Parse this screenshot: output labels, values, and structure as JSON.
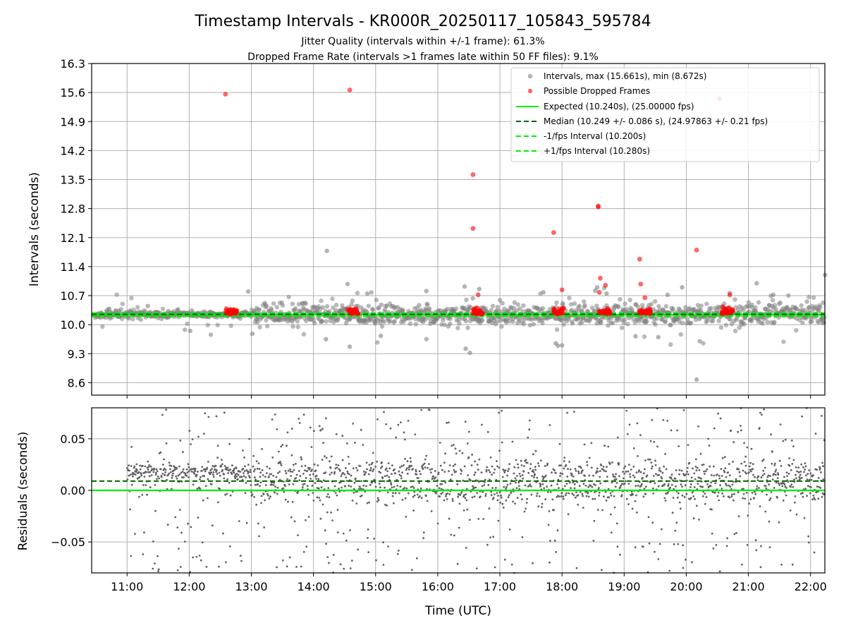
{
  "title": "Timestamp Intervals - KR000R_20250117_105843_595784",
  "subtitle_1": "Jitter Quality (intervals within +/-1 frame): 61.3%",
  "subtitle_2": "Dropped Frame Rate (intervals >1 frames late within 50 FF files): 9.1%",
  "colors": {
    "intervals": "#808080",
    "dropped": "#ff0000",
    "expected": "#00ee00",
    "median": "#006400",
    "bounds": "#00ee00",
    "residual_points": "#606060",
    "grid": "#b0b0b0"
  },
  "chart_data": [
    {
      "type": "scatter",
      "name": "top",
      "ylabel": "Intervals (seconds)",
      "yticks": [
        "8.6",
        "9.3",
        "10.0",
        "10.7",
        "11.4",
        "12.1",
        "12.8",
        "13.5",
        "14.2",
        "14.9",
        "15.6",
        "16.3"
      ],
      "ylim": [
        8.3,
        16.3
      ],
      "xlim_hours": [
        10.43,
        22.23
      ],
      "grid": true,
      "legend_position": "top-right",
      "legend": [
        "Intervals, max (15.661s), min (8.672s)",
        "Possible Dropped Frames",
        "Expected (10.240s), (25.00000 fps)",
        "Median (10.249 +/- 0.086 s), (24.97863 +/- 0.21 fps)",
        "-1/fps Interval (10.200s)",
        "+1/fps Interval (10.280s)"
      ],
      "expected": 10.24,
      "median": 10.249,
      "lower_bound": 10.2,
      "upper_bound": 10.28,
      "interval_outliers": [
        {
          "x": "14:13",
          "y": 11.78
        },
        {
          "x": "20:10",
          "y": 8.672
        },
        {
          "x": "22:14",
          "y": 11.2
        },
        {
          "x": "16:31",
          "y": 9.32
        },
        {
          "x": "16:27",
          "y": 9.42
        },
        {
          "x": "14:35",
          "y": 9.47
        },
        {
          "x": "14:33",
          "y": 10.98
        },
        {
          "x": "21:08",
          "y": 11.0
        },
        {
          "x": "15:49",
          "y": 10.81
        },
        {
          "x": "18:34",
          "y": 10.9
        },
        {
          "x": "19:56",
          "y": 10.9
        },
        {
          "x": "16:26",
          "y": 10.92
        },
        {
          "x": "16:40",
          "y": 10.86
        },
        {
          "x": "12:57",
          "y": 10.8
        },
        {
          "x": "17:42",
          "y": 10.78
        },
        {
          "x": "18:32",
          "y": 10.82
        },
        {
          "x": "20:13",
          "y": 9.6
        },
        {
          "x": "14:52",
          "y": 10.75
        },
        {
          "x": "14:12",
          "y": 9.65
        },
        {
          "x": "15:49",
          "y": 9.65
        },
        {
          "x": "19:33",
          "y": 9.7
        },
        {
          "x": "17:56",
          "y": 9.49
        },
        {
          "x": "18:00",
          "y": 9.5
        },
        {
          "x": "17:54",
          "y": 9.55
        },
        {
          "x": "12:01",
          "y": 9.85
        },
        {
          "x": "13:01",
          "y": 9.78
        },
        {
          "x": "15:05",
          "y": 9.73
        },
        {
          "x": "20:42",
          "y": 10.76
        },
        {
          "x": "21:24",
          "y": 10.72
        },
        {
          "x": "11:20",
          "y": 10.45
        },
        {
          "x": "19:11",
          "y": 9.72
        },
        {
          "x": "18:43",
          "y": 10.75
        },
        {
          "x": "19:42",
          "y": 10.72
        }
      ],
      "dropped_frames": [
        {
          "x": "12:35",
          "y": 15.56
        },
        {
          "x": "14:35",
          "y": 15.661
        },
        {
          "x": "16:34",
          "y": 13.62
        },
        {
          "x": "16:34",
          "y": 12.32
        },
        {
          "x": "17:52",
          "y": 12.22
        },
        {
          "x": "18:35",
          "y": 12.86
        },
        {
          "x": "18:35",
          "y": 12.84
        },
        {
          "x": "20:10",
          "y": 11.8
        },
        {
          "x": "19:15",
          "y": 11.58
        },
        {
          "x": "20:32",
          "y": 15.45
        },
        {
          "x": "18:37",
          "y": 11.12
        },
        {
          "x": "19:16",
          "y": 10.98
        },
        {
          "x": "18:42",
          "y": 10.95
        },
        {
          "x": "18:00",
          "y": 10.84
        },
        {
          "x": "20:42",
          "y": 10.72
        },
        {
          "x": "18:36",
          "y": 10.78
        },
        {
          "x": "16:39",
          "y": 10.72
        },
        {
          "x": "19:20",
          "y": 10.65
        }
      ],
      "dropped_clusters": [
        "12:41",
        "14:38",
        "16:39",
        "17:57",
        "18:41",
        "19:20",
        "20:40"
      ]
    },
    {
      "type": "scatter",
      "name": "bottom",
      "ylabel": "Residuals (seconds)",
      "xlabel": "Time (UTC)",
      "yticks": [
        "−0.05",
        "0.00",
        "0.05"
      ],
      "ylim": [
        -0.08,
        0.08
      ],
      "xticks": [
        "11:00",
        "12:00",
        "13:00",
        "14:00",
        "15:00",
        "16:00",
        "17:00",
        "18:00",
        "19:00",
        "20:00",
        "21:00",
        "22:00"
      ],
      "xlim_hours": [
        10.43,
        22.23
      ],
      "grid": true,
      "expected_residual": 0.0,
      "median_residual": 0.009
    }
  ]
}
